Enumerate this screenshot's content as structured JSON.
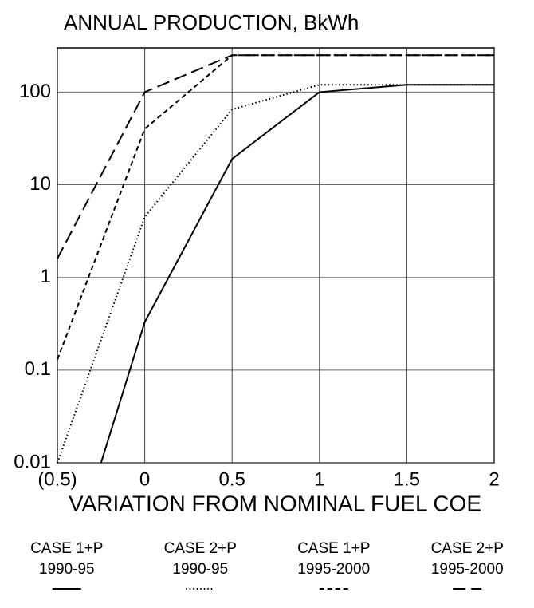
{
  "chart_data": {
    "type": "line",
    "title": "ANNUAL PRODUCTION, BkWh",
    "x_label": "VARIATION FROM NOMINAL FUEL COE",
    "xlim": [
      -0.5,
      2
    ],
    "xticks": [
      {
        "value": -0.5,
        "label": "(0.5)"
      },
      0,
      0.5,
      1,
      1.5,
      2
    ],
    "ylim": [
      0.01,
      300
    ],
    "yticks": [
      0.01,
      0.1,
      1,
      10,
      100
    ],
    "y_scale": "log",
    "grid": true,
    "legend": "bottom",
    "series": [
      {
        "name": "CASE 1+P",
        "period": "1990-95",
        "color": "#000000",
        "dash": "solid",
        "x": [
          -0.25,
          0,
          0.5,
          1,
          1.5,
          2
        ],
        "values": [
          0.01,
          0.33,
          19,
          100,
          120,
          120
        ]
      },
      {
        "name": "CASE 2+P",
        "period": "1990-95",
        "color": "#000000",
        "dash": "dotted",
        "x": [
          -0.5,
          0,
          0.5,
          1,
          1.5,
          2
        ],
        "values": [
          0.01,
          4.5,
          65,
          120,
          120,
          120
        ]
      },
      {
        "name": "CASE 1+P",
        "period": "1995-2000",
        "color": "#000000",
        "dash": "dashed",
        "x": [
          -0.5,
          0,
          0.5,
          1,
          1.5,
          2
        ],
        "values": [
          0.13,
          40,
          250,
          250,
          250,
          250
        ]
      },
      {
        "name": "CASE 2+P",
        "period": "1995-2000",
        "color": "#000000",
        "dash": "longdash",
        "x": [
          -0.5,
          0,
          0.5,
          1,
          1.5,
          2
        ],
        "values": [
          1.6,
          100,
          250,
          250,
          250,
          250
        ]
      }
    ]
  }
}
